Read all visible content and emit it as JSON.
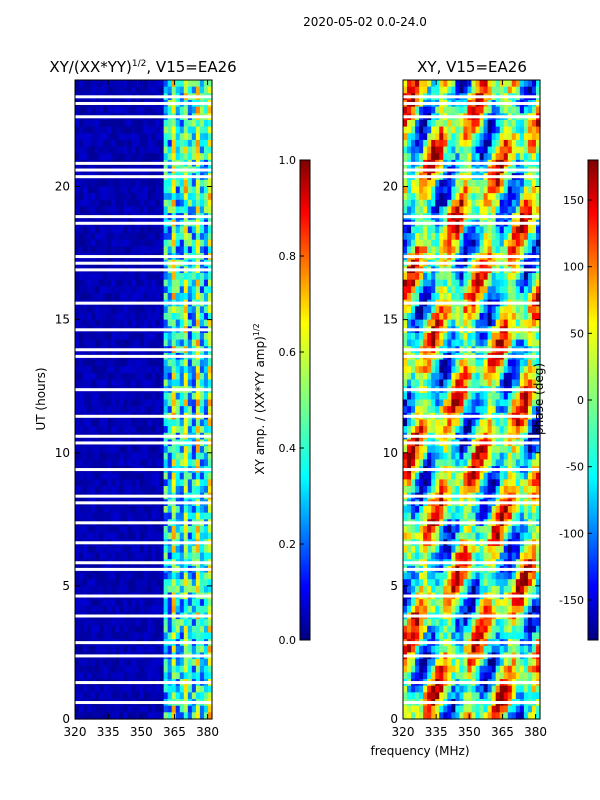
{
  "suptitle": "2020-05-02 0.0-24.0",
  "chart_data": [
    {
      "type": "heatmap",
      "title": "XY/(XX*YY)",
      "title_sup": "1/2",
      "title_rest": ", V15=EA26",
      "xlabel": "frequency (MHz)",
      "ylabel": "UT (hours)",
      "xlim": [
        320,
        382
      ],
      "ylim": [
        0,
        24
      ],
      "xticks": [
        320,
        335,
        350,
        365,
        380
      ],
      "yticks": [
        0,
        5,
        10,
        15,
        20
      ],
      "colormap": "jet",
      "description_values": "Amplitude mostly near 0.0 below 360 MHz; elevated 0.3-0.6 in bands between 360 and 382 MHz",
      "colorbar": {
        "label": "XY amp. / (XX*YY amp)",
        "label_sup": "1/2",
        "range": [
          0.0,
          1.0
        ],
        "ticks": [
          "0.0",
          "0.2",
          "0.4",
          "0.6",
          "0.8",
          "1.0"
        ]
      }
    },
    {
      "type": "heatmap",
      "title": "XY, V15=EA26",
      "xlabel": "frequency (MHz)",
      "ylabel": "",
      "xlim": [
        320,
        382
      ],
      "ylim": [
        0,
        24
      ],
      "xticks": [
        320,
        335,
        350,
        365,
        380
      ],
      "yticks": [
        0,
        5,
        10,
        15,
        20
      ],
      "colormap": "jet",
      "description_values": "Phase values spread across full range -180 to 180 deg",
      "colorbar": {
        "label": "phase (deg)",
        "range": [
          -180,
          180
        ],
        "ticks": [
          "-150",
          "-100",
          "-50",
          "0",
          "50",
          "100",
          "150"
        ]
      }
    }
  ],
  "shared_xlabel": "frequency (MHz)"
}
